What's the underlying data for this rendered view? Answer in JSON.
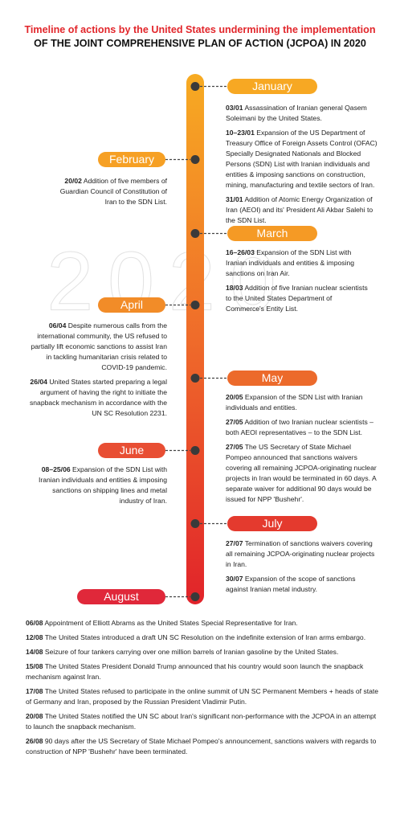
{
  "title": {
    "line1": "Timeline of actions by the United States undermining the implementation",
    "line2": "OF THE JOINT COMPREHENSIVE PLAN OF ACTION (JCPOA) IN 2020"
  },
  "watermark": "2020",
  "months": [
    {
      "name": "January",
      "events": [
        {
          "date": "03/01",
          "text": "Assassination of Iranian general Qasem Soleimani by the United States."
        },
        {
          "date": "10–23/01",
          "text": "Expansion of the US Department of Treasury Office of Foreign Assets Control (OFAC) Specially Designated Nationals and Blocked Persons (SDN) List with Iranian individuals and entities & imposing sanctions on construction, mining, manufacturing and textile sectors of Iran."
        },
        {
          "date": "31/01",
          "text": "Addition of Atomic Energy Organization of Iran (AEOI) and its' President Ali Akbar Salehi to the SDN List."
        }
      ]
    },
    {
      "name": "February",
      "events": [
        {
          "date": "20/02",
          "text": "Addition of five members of Guardian Council of Constitution of Iran to the SDN List."
        }
      ]
    },
    {
      "name": "March",
      "events": [
        {
          "date": "16–26/03",
          "text": "Expansion of the SDN List with Iranian individuals and entities & imposing sanctions on Iran Air."
        },
        {
          "date": "18/03",
          "text": "Addition of five Iranian nuclear scientists to the United States Department of Commerce's Entity List."
        }
      ]
    },
    {
      "name": "April",
      "events": [
        {
          "date": "06/04",
          "text": "Despite numerous calls from the international community, the US refused to partially lift economic sanctions to assist Iran in tackling humanitarian crisis related to COVID-19 pandemic."
        },
        {
          "date": "26/04",
          "text": "United States started preparing a legal argument of having the right to initiate the snapback mechanism in accordance with the UN SC Resolution 2231."
        }
      ]
    },
    {
      "name": "May",
      "events": [
        {
          "date": "20/05",
          "text": "Expansion of the SDN List with Iranian individuals and entities."
        },
        {
          "date": "27/05",
          "text": "Addition of two Iranian nuclear scientists – both AEOI representatives – to the SDN List."
        },
        {
          "date": "27/05",
          "text": "The US Secretary of State Michael Pompeo announced that sanctions waivers covering all remaining JCPOA-originating nuclear projects in Iran would be terminated in 60 days. A separate waiver for additional 90 days would be issued for NPP 'Bushehr'."
        }
      ]
    },
    {
      "name": "June",
      "events": [
        {
          "date": "08–25/06",
          "text": "Expansion of the SDN List with Iranian individuals and entities & imposing sanctions on shipping lines and metal industry of Iran."
        }
      ]
    },
    {
      "name": "July",
      "events": [
        {
          "date": "27/07",
          "text": "Termination of sanctions waivers covering all remaining JCPOA-originating nuclear projects in Iran."
        },
        {
          "date": "30/07",
          "text": "Expansion of the scope of sanctions against Iranian metal industry."
        }
      ]
    },
    {
      "name": "August",
      "events": [
        {
          "date": "06/08",
          "text": "Appointment of Elliott Abrams as the United States Special Representative for Iran."
        },
        {
          "date": "12/08",
          "text": "The United States introduced a draft UN SC Resolution on the indefinite extension of Iran arms embargo."
        },
        {
          "date": "14/08",
          "text": "Seizure of four tankers carrying over one million barrels of Iranian gasoline by the United States."
        },
        {
          "date": "15/08",
          "text": "The United States President Donald Trump announced that his country would soon launch the snapback mechanism against Iran."
        },
        {
          "date": "17/08",
          "text": "The United States refused to participate in the online summit of UN SC Permanent Members + heads of state of Germany and Iran, proposed by the Russian President Vladimir Putin."
        },
        {
          "date": "20/08",
          "text": "The United States notified the UN SC about Iran's significant non-performance with the JCPOA in an attempt to launch the snapback mechanism."
        },
        {
          "date": "26/08",
          "text": "90 days after the US Secretary of State Michael Pompeo's announcement, sanctions waivers with regards to construction of NPP 'Bushehr' have been terminated."
        }
      ]
    }
  ]
}
